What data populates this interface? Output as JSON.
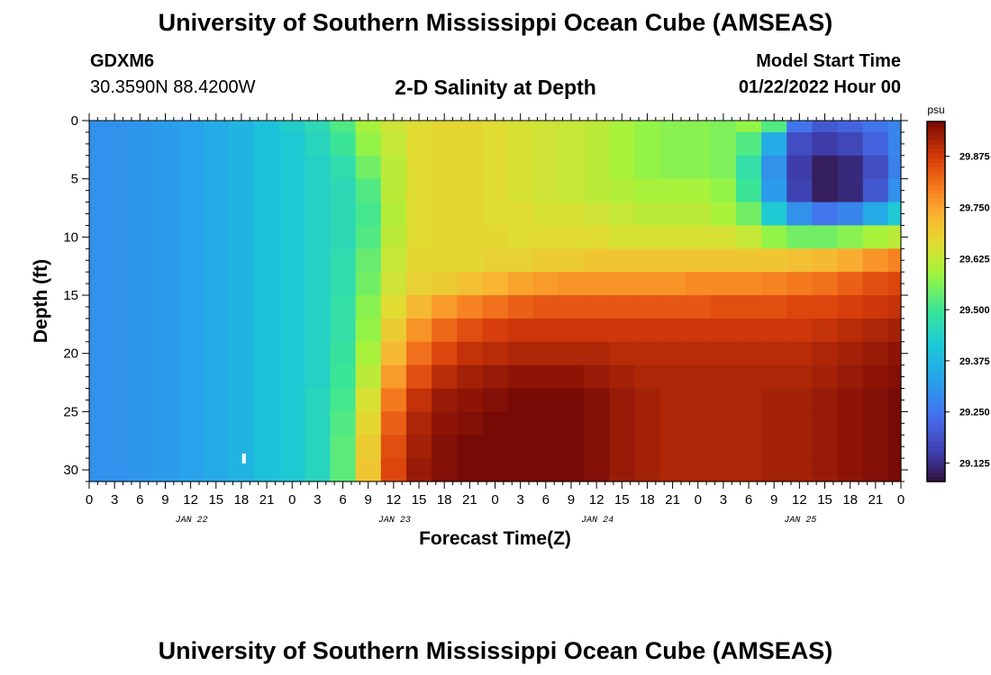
{
  "header": {
    "title": "University of Southern Mississippi Ocean Cube (AMSEAS)",
    "station_id": "GDXM6",
    "station_coords": "30.3590N  88.4200W",
    "plot_title": "2-D Salinity at Depth",
    "start_label": "Model Start Time",
    "start_value": "01/22/2022 Hour 00"
  },
  "footer": {
    "title": "University of Southern Mississippi Ocean Cube (AMSEAS)"
  },
  "chart_data": {
    "type": "heatmap",
    "title": "2-D Salinity at Depth",
    "xlabel": "Forecast Time(Z)",
    "ylabel": "Depth (ft)",
    "x": [
      0,
      3,
      6,
      9,
      12,
      15,
      18,
      21,
      24,
      27,
      30,
      33,
      36,
      39,
      42,
      45,
      48,
      51,
      54,
      57,
      60,
      63,
      66,
      69,
      72,
      75,
      78,
      81,
      84,
      87,
      90,
      93,
      96
    ],
    "x_tick_labels": [
      "0",
      "3",
      "6",
      "9",
      "12",
      "15",
      "18",
      "21",
      "0",
      "3",
      "6",
      "9",
      "12",
      "15",
      "18",
      "21",
      "0",
      "3",
      "6",
      "9",
      "12",
      "15",
      "18",
      "21",
      "0",
      "3",
      "6",
      "9",
      "12",
      "15",
      "18",
      "21",
      "0"
    ],
    "x_date_labels": [
      {
        "hour": 12,
        "label": "JAN 22"
      },
      {
        "hour": 36,
        "label": "JAN 23"
      },
      {
        "hour": 60,
        "label": "JAN 24"
      },
      {
        "hour": 84,
        "label": "JAN 25"
      }
    ],
    "y": [
      0,
      2,
      4,
      6,
      8,
      10,
      12,
      14,
      16,
      18,
      20,
      22,
      24,
      26,
      28,
      30
    ],
    "y_ticks": [
      0,
      5,
      10,
      15,
      20,
      25,
      30
    ],
    "xlim": [
      0,
      96
    ],
    "ylim": [
      0,
      31
    ],
    "colorbar": {
      "unit": "psu",
      "min": 29.08,
      "max": 29.96,
      "ticks": [
        29.125,
        29.25,
        29.375,
        29.5,
        29.625,
        29.75,
        29.875
      ],
      "tick_labels": [
        "29.125",
        "29.250",
        "29.375",
        "29.500",
        "29.625",
        "29.750",
        "29.875"
      ]
    },
    "values": [
      [
        29.3,
        29.3,
        29.31,
        29.32,
        29.33,
        29.35,
        29.37,
        29.4,
        29.43,
        29.46,
        29.52,
        29.6,
        29.64,
        29.66,
        29.67,
        29.67,
        29.66,
        29.65,
        29.64,
        29.63,
        29.62,
        29.6,
        29.58,
        29.57,
        29.57,
        29.56,
        29.58,
        29.52,
        29.25,
        29.2,
        29.22,
        29.25,
        29.28
      ],
      [
        29.3,
        29.3,
        29.31,
        29.32,
        29.33,
        29.35,
        29.37,
        29.4,
        29.42,
        29.45,
        29.5,
        29.58,
        29.63,
        29.66,
        29.67,
        29.67,
        29.66,
        29.65,
        29.64,
        29.63,
        29.62,
        29.6,
        29.58,
        29.57,
        29.57,
        29.56,
        29.52,
        29.35,
        29.18,
        29.15,
        29.17,
        29.22,
        29.28
      ],
      [
        29.3,
        29.3,
        29.31,
        29.32,
        29.33,
        29.35,
        29.37,
        29.4,
        29.42,
        29.44,
        29.47,
        29.55,
        29.62,
        29.66,
        29.67,
        29.67,
        29.66,
        29.65,
        29.64,
        29.63,
        29.62,
        29.6,
        29.58,
        29.57,
        29.57,
        29.56,
        29.48,
        29.3,
        29.15,
        29.1,
        29.12,
        29.18,
        29.27
      ],
      [
        29.3,
        29.3,
        29.31,
        29.32,
        29.33,
        29.35,
        29.37,
        29.4,
        29.42,
        29.44,
        29.46,
        29.52,
        29.62,
        29.66,
        29.67,
        29.67,
        29.66,
        29.65,
        29.64,
        29.63,
        29.62,
        29.61,
        29.6,
        29.6,
        29.6,
        29.58,
        29.5,
        29.32,
        29.16,
        29.1,
        29.12,
        29.2,
        29.3
      ],
      [
        29.3,
        29.3,
        29.31,
        29.32,
        29.33,
        29.35,
        29.37,
        29.4,
        29.42,
        29.44,
        29.46,
        29.51,
        29.61,
        29.66,
        29.67,
        29.67,
        29.66,
        29.66,
        29.65,
        29.65,
        29.64,
        29.63,
        29.62,
        29.62,
        29.62,
        29.6,
        29.55,
        29.42,
        29.3,
        29.25,
        29.28,
        29.35,
        29.42
      ],
      [
        29.3,
        29.3,
        29.31,
        29.32,
        29.33,
        29.35,
        29.37,
        29.4,
        29.42,
        29.44,
        29.46,
        29.52,
        29.62,
        29.66,
        29.67,
        29.67,
        29.67,
        29.66,
        29.66,
        29.66,
        29.66,
        29.65,
        29.65,
        29.65,
        29.65,
        29.65,
        29.63,
        29.58,
        29.55,
        29.55,
        29.57,
        29.6,
        29.62
      ],
      [
        29.3,
        29.3,
        29.31,
        29.32,
        29.33,
        29.35,
        29.37,
        29.4,
        29.42,
        29.44,
        29.47,
        29.54,
        29.63,
        29.67,
        29.67,
        29.67,
        29.68,
        29.68,
        29.69,
        29.69,
        29.7,
        29.7,
        29.7,
        29.7,
        29.7,
        29.7,
        29.7,
        29.7,
        29.71,
        29.72,
        29.74,
        29.77,
        29.79
      ],
      [
        29.3,
        29.3,
        29.31,
        29.32,
        29.33,
        29.35,
        29.37,
        29.4,
        29.42,
        29.44,
        29.47,
        29.55,
        29.64,
        29.68,
        29.69,
        29.71,
        29.73,
        29.75,
        29.76,
        29.77,
        29.77,
        29.77,
        29.77,
        29.77,
        29.78,
        29.78,
        29.78,
        29.79,
        29.8,
        29.81,
        29.83,
        29.85,
        29.86
      ],
      [
        29.3,
        29.3,
        29.31,
        29.32,
        29.33,
        29.35,
        29.37,
        29.4,
        29.42,
        29.44,
        29.48,
        29.57,
        29.66,
        29.72,
        29.76,
        29.79,
        29.81,
        29.83,
        29.84,
        29.84,
        29.84,
        29.84,
        29.84,
        29.84,
        29.84,
        29.85,
        29.85,
        29.85,
        29.86,
        29.86,
        29.87,
        29.88,
        29.89
      ],
      [
        29.3,
        29.3,
        29.31,
        29.32,
        29.33,
        29.35,
        29.37,
        29.4,
        29.42,
        29.44,
        29.48,
        29.58,
        29.69,
        29.77,
        29.82,
        29.85,
        29.87,
        29.88,
        29.88,
        29.88,
        29.88,
        29.88,
        29.88,
        29.88,
        29.88,
        29.88,
        29.88,
        29.88,
        29.88,
        29.89,
        29.9,
        29.91,
        29.92
      ],
      [
        29.3,
        29.3,
        29.31,
        29.32,
        29.33,
        29.35,
        29.37,
        29.4,
        29.42,
        29.44,
        29.49,
        29.6,
        29.72,
        29.81,
        29.86,
        29.89,
        29.9,
        29.91,
        29.91,
        29.91,
        29.91,
        29.9,
        29.9,
        29.9,
        29.9,
        29.9,
        29.9,
        29.9,
        29.9,
        29.91,
        29.92,
        29.93,
        29.94
      ],
      [
        29.3,
        29.3,
        29.31,
        29.32,
        29.33,
        29.35,
        29.37,
        29.4,
        29.42,
        29.44,
        29.5,
        29.62,
        29.76,
        29.85,
        29.9,
        29.92,
        29.93,
        29.94,
        29.94,
        29.94,
        29.93,
        29.92,
        29.91,
        29.91,
        29.91,
        29.91,
        29.91,
        29.91,
        29.91,
        29.92,
        29.93,
        29.94,
        29.95
      ],
      [
        29.3,
        29.3,
        29.31,
        29.32,
        29.33,
        29.35,
        29.37,
        29.4,
        29.42,
        29.45,
        29.51,
        29.65,
        29.8,
        29.89,
        29.93,
        29.94,
        29.95,
        29.96,
        29.96,
        29.96,
        29.95,
        29.93,
        29.92,
        29.91,
        29.91,
        29.91,
        29.91,
        29.92,
        29.92,
        29.93,
        29.94,
        29.95,
        29.96
      ],
      [
        29.3,
        29.3,
        29.31,
        29.32,
        29.33,
        29.35,
        29.37,
        29.4,
        29.42,
        29.45,
        29.52,
        29.67,
        29.83,
        29.91,
        29.94,
        29.95,
        29.96,
        29.96,
        29.96,
        29.96,
        29.95,
        29.93,
        29.92,
        29.91,
        29.91,
        29.91,
        29.91,
        29.92,
        29.92,
        29.93,
        29.94,
        29.95,
        29.96
      ],
      [
        29.3,
        29.3,
        29.31,
        29.32,
        29.33,
        29.35,
        29.37,
        29.4,
        29.42,
        29.45,
        29.53,
        29.69,
        29.85,
        29.92,
        29.95,
        29.96,
        29.96,
        29.96,
        29.96,
        29.96,
        29.95,
        29.93,
        29.92,
        29.91,
        29.91,
        29.91,
        29.91,
        29.92,
        29.92,
        29.93,
        29.94,
        29.95,
        29.96
      ],
      [
        29.3,
        29.3,
        29.31,
        29.32,
        29.33,
        29.35,
        29.37,
        29.4,
        29.42,
        29.45,
        29.53,
        29.7,
        29.86,
        29.93,
        29.95,
        29.96,
        29.96,
        29.96,
        29.96,
        29.96,
        29.95,
        29.93,
        29.92,
        29.91,
        29.91,
        29.91,
        29.91,
        29.92,
        29.92,
        29.93,
        29.94,
        29.95,
        29.96
      ]
    ],
    "grid": false
  }
}
